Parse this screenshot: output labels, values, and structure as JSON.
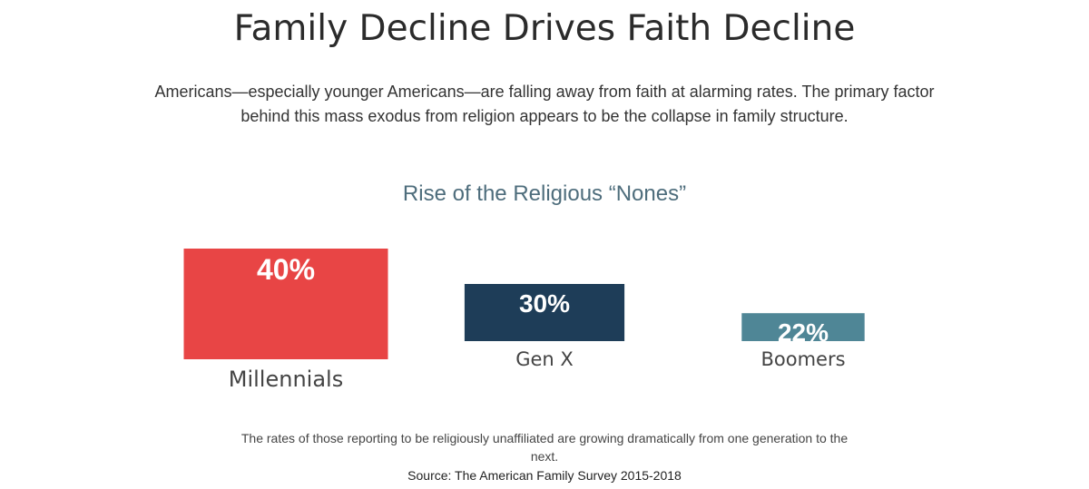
{
  "header": {
    "title": "Family Decline Drives Faith Decline",
    "intro": "Americans—especially younger Americans—are falling away from faith at alarming rates. The primary factor behind this mass exodus from religion appears to be the collapse in family structure."
  },
  "chart_data": {
    "type": "bar",
    "title": "Rise of the Religious “Nones”",
    "categories": [
      "Millennials",
      "Gen X",
      "Boomers"
    ],
    "values": [
      40,
      30,
      22
    ],
    "value_labels": [
      "40%",
      "30%",
      "22%"
    ],
    "unit": "%",
    "colors": [
      "#e84545",
      "#1e3d58",
      "#4f8696"
    ],
    "xlabel": "",
    "ylabel": "",
    "grid": false,
    "legend": "none"
  },
  "footer": {
    "caption": "The rates of those reporting to be religiously unaffiliated are growing dramatically from one generation to the next.",
    "source": "Source: The American Family Survey 2015-2018"
  }
}
